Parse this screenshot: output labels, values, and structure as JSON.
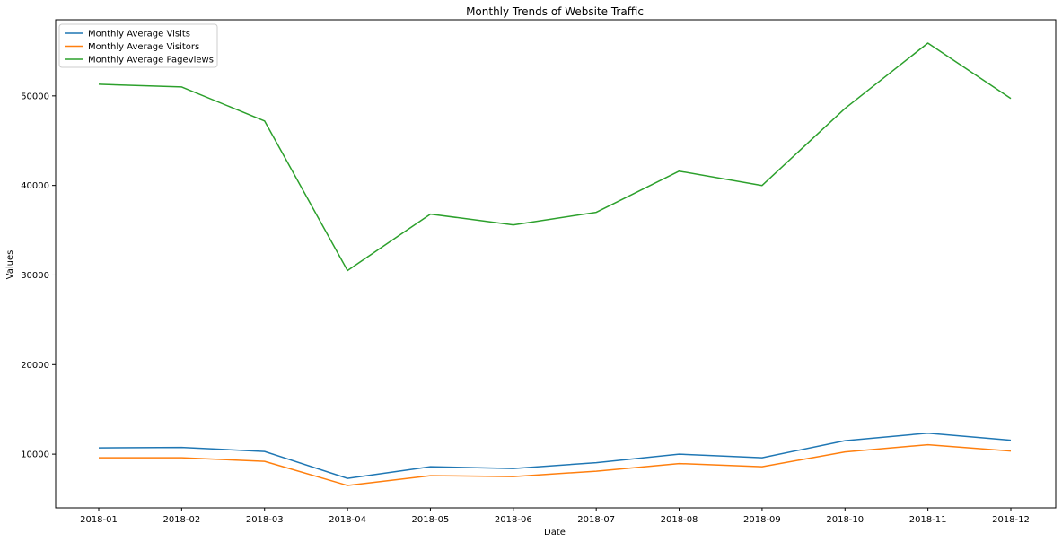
{
  "chart_data": {
    "type": "line",
    "title": "Monthly Trends of Website Traffic",
    "xlabel": "Date",
    "ylabel": "Values",
    "categories": [
      "2018-01",
      "2018-02",
      "2018-03",
      "2018-04",
      "2018-05",
      "2018-06",
      "2018-07",
      "2018-08",
      "2018-09",
      "2018-10",
      "2018-11",
      "2018-12"
    ],
    "yticks": [
      "10000",
      "20000",
      "30000",
      "40000",
      "50000"
    ],
    "ylim": [
      4000,
      58500
    ],
    "grid": false,
    "legend_position": "top-left",
    "series": [
      {
        "name": "Monthly Average Visits",
        "color": "#1f77b4",
        "values": [
          10700,
          10750,
          10300,
          7300,
          8600,
          8400,
          9050,
          10000,
          9600,
          11500,
          12350,
          11550
        ]
      },
      {
        "name": "Monthly Average Visitors",
        "color": "#ff7f0e",
        "values": [
          9600,
          9600,
          9200,
          6500,
          7600,
          7500,
          8100,
          8950,
          8600,
          10250,
          11050,
          10350
        ]
      },
      {
        "name": "Monthly Average Pageviews",
        "color": "#2ca02c",
        "values": [
          51300,
          51000,
          47200,
          30500,
          36800,
          35600,
          37000,
          41600,
          40000,
          48600,
          55900,
          49700
        ]
      }
    ]
  }
}
